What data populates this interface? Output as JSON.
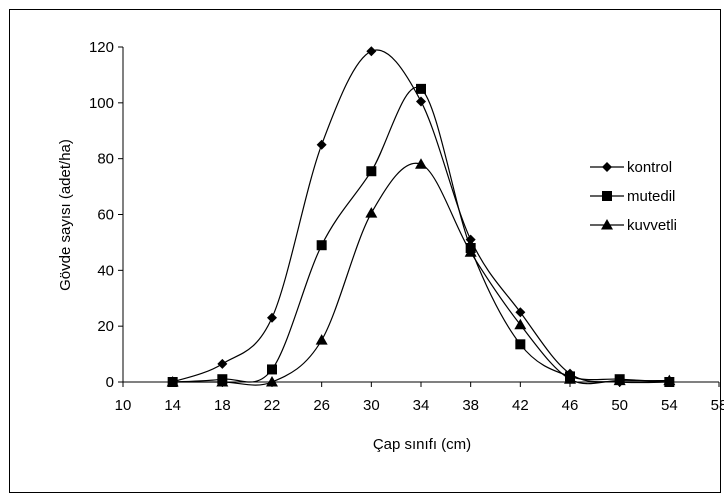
{
  "chart_data": {
    "type": "line",
    "title": "",
    "xlabel": "Çap sınıfı (cm)",
    "ylabel": "Gövde sayısı (adet/ha)",
    "xlim": [
      10,
      58
    ],
    "ylim": [
      0,
      120
    ],
    "x_ticks": [
      10,
      14,
      18,
      22,
      26,
      30,
      34,
      38,
      42,
      46,
      50,
      54,
      58
    ],
    "y_ticks": [
      0,
      20,
      40,
      60,
      80,
      100,
      120
    ],
    "x_tick_labels": [
      "10",
      "14",
      "18",
      "22",
      "26",
      "30",
      "34",
      "38",
      "42",
      "46",
      "50",
      "54",
      "58"
    ],
    "y_tick_labels": [
      "0",
      "20",
      "40",
      "60",
      "80",
      "100",
      "120"
    ],
    "grid": false,
    "legend_position": "right",
    "smooth": true,
    "series": [
      {
        "name": "kontrol",
        "marker": "diamond",
        "x": [
          14,
          18,
          22,
          26,
          30,
          34,
          38,
          42,
          46,
          50,
          54
        ],
        "y": [
          0,
          6.5,
          23,
          85,
          118.5,
          100.5,
          51,
          25,
          3,
          0,
          0
        ]
      },
      {
        "name": "mutedil",
        "marker": "square",
        "x": [
          14,
          18,
          22,
          26,
          30,
          34,
          38,
          42,
          46,
          50,
          54
        ],
        "y": [
          0,
          1,
          4.5,
          49,
          75.5,
          105,
          48,
          13.5,
          2,
          1,
          0
        ]
      },
      {
        "name": "kuvvetli",
        "marker": "triangle",
        "x": [
          14,
          18,
          22,
          26,
          30,
          34,
          38,
          42,
          46,
          50,
          54
        ],
        "y": [
          0,
          0,
          0,
          15,
          60.5,
          78,
          46.5,
          20.5,
          1,
          0.5,
          0.5
        ]
      }
    ],
    "colors": {
      "line": "#000000",
      "marker": "#000000"
    }
  }
}
